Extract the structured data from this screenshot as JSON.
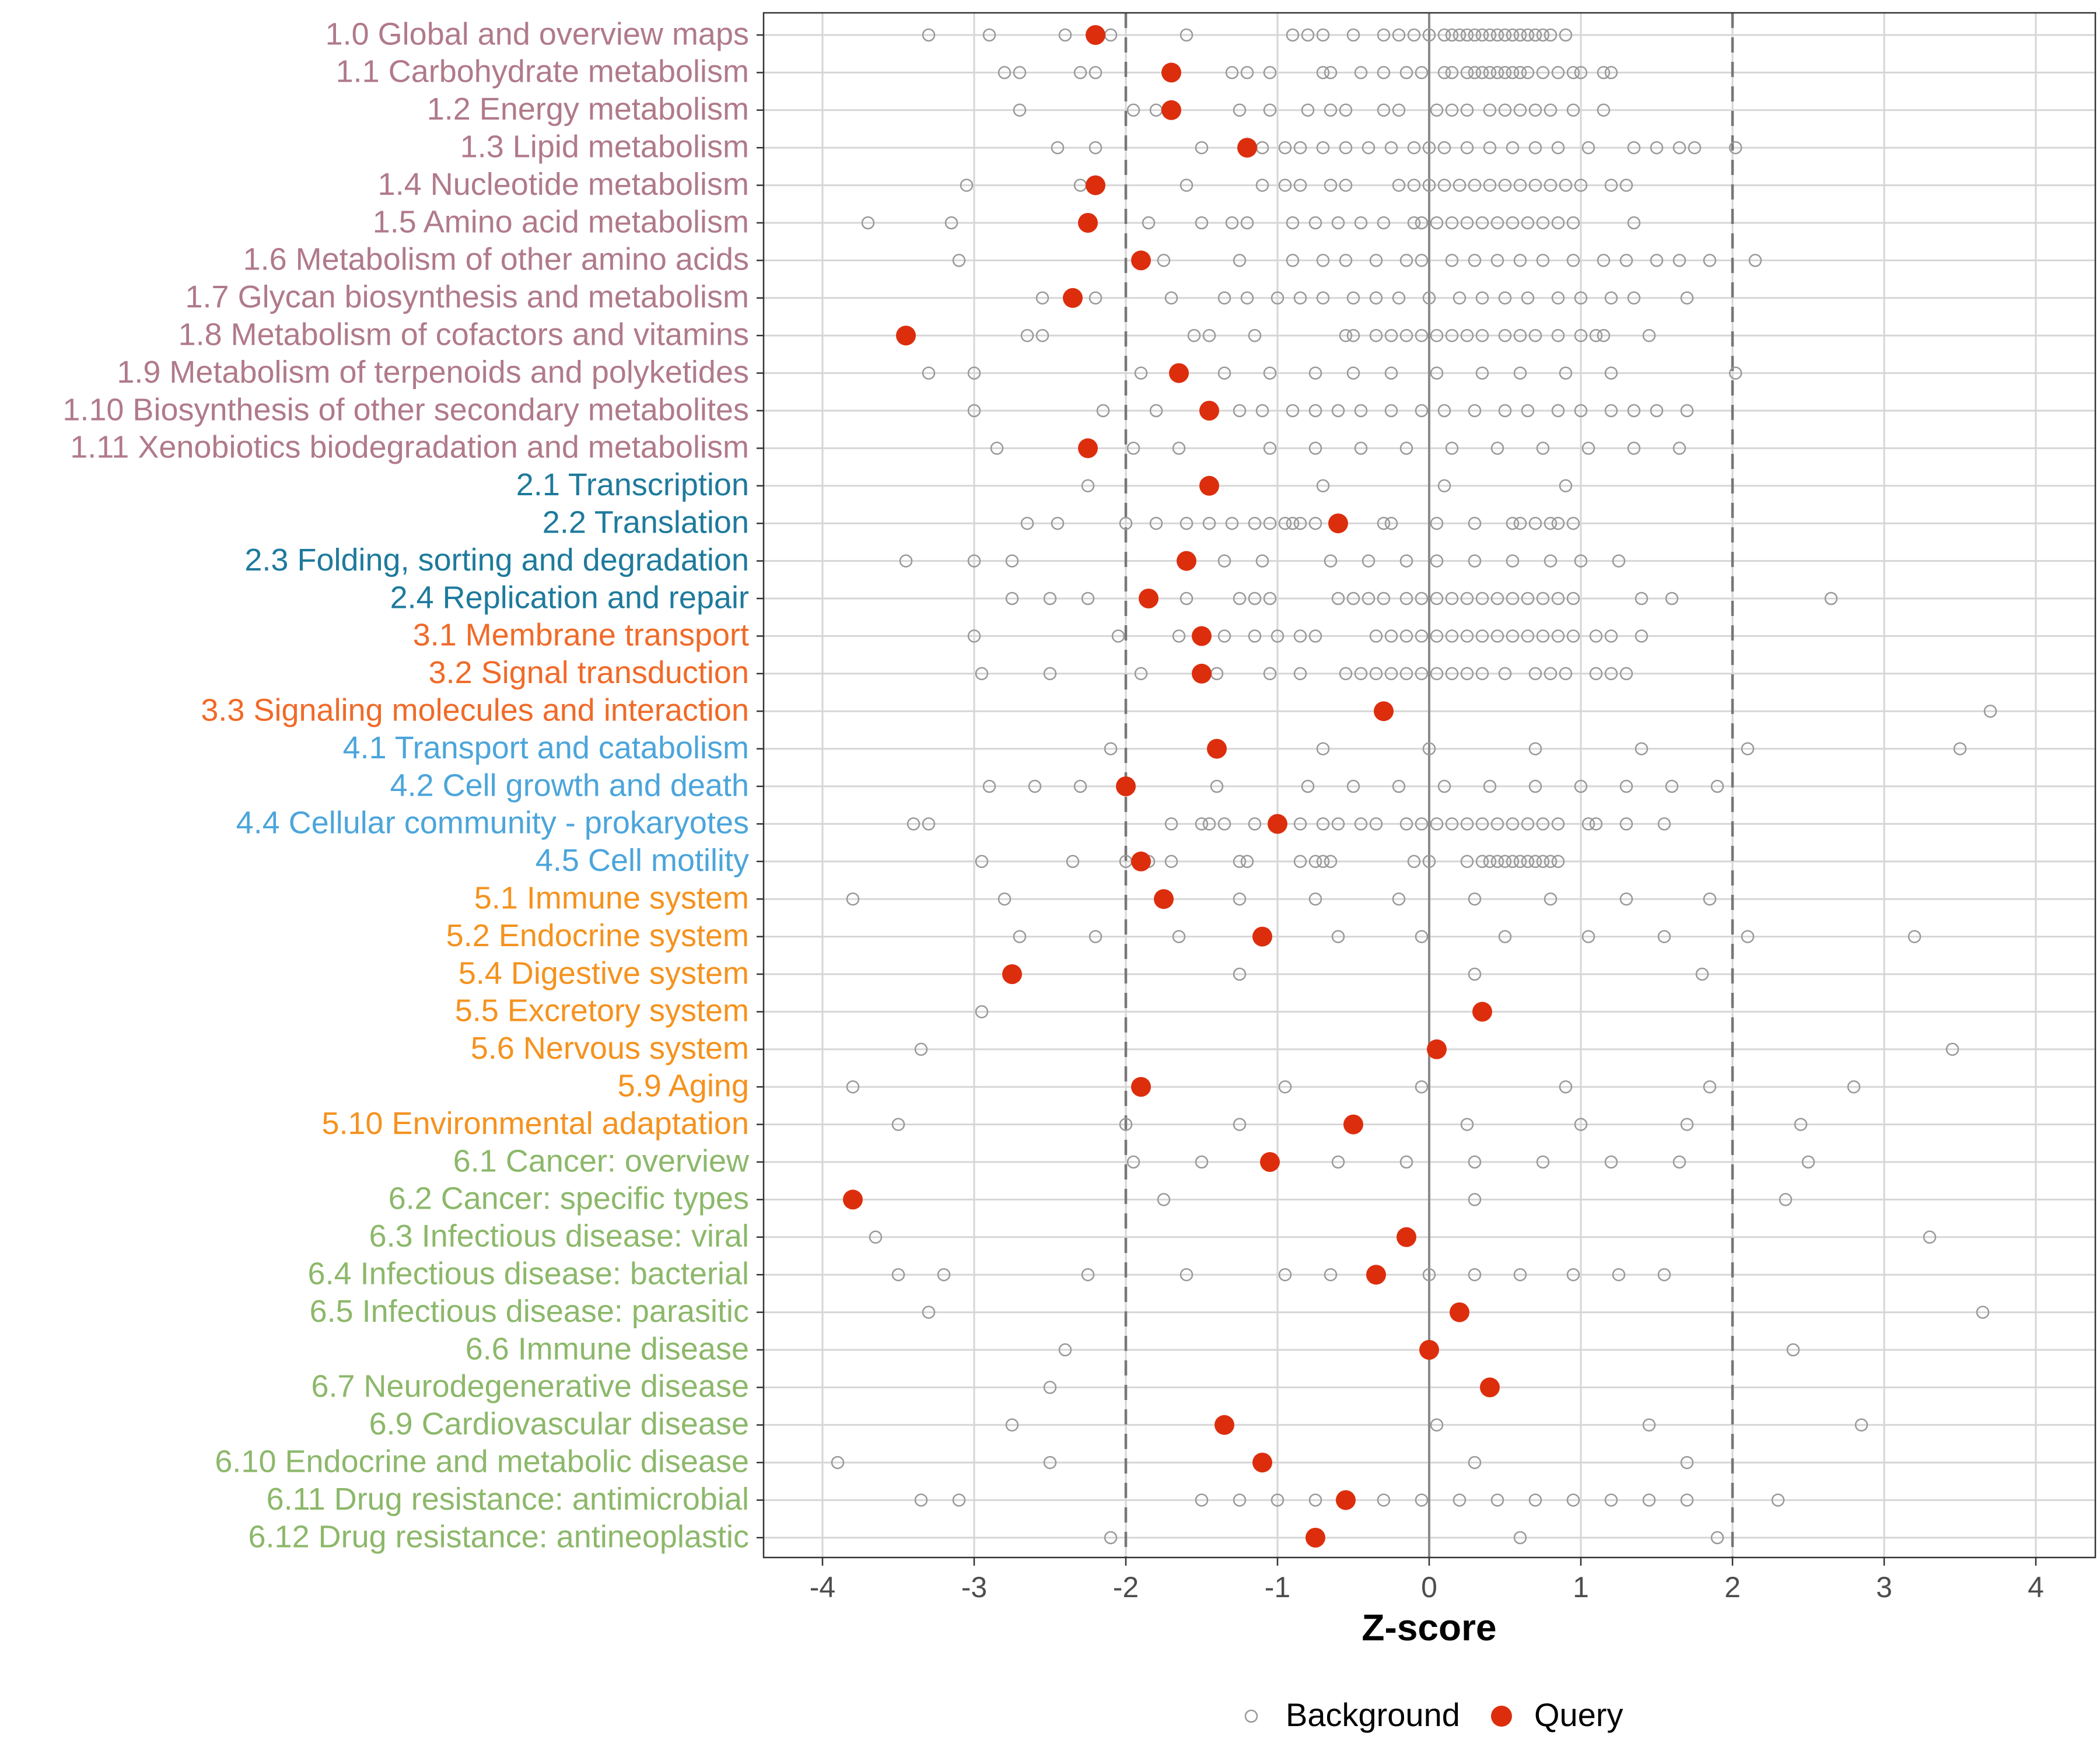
{
  "chart_data": {
    "type": "scatter",
    "title": "",
    "xlabel": "Z-score",
    "ylabel": "",
    "xlim": [
      -4.4,
      4.4
    ],
    "xticks": [
      -4,
      -3,
      -2,
      -1,
      0,
      1,
      2,
      3,
      4
    ],
    "xtick_labels": [
      "-4",
      "-3",
      "-2",
      "-1",
      "0",
      "1",
      "2",
      "3",
      "4"
    ],
    "reference_lines": {
      "dashed": [
        -2,
        2
      ],
      "solid": [
        0
      ]
    },
    "colors": {
      "metabolism": "#b07a8a",
      "genetic": "#1e7a9c",
      "environmental": "#f06a28",
      "cellular": "#4ba5db",
      "organismal": "#f5921e",
      "disease": "#8cb86a",
      "query": "#dc2e0d",
      "background": "#999999"
    },
    "legend": {
      "position": "bottom",
      "entries": [
        "Background",
        "Query"
      ]
    },
    "categories": [
      {
        "label": "1.0 Global and overview maps",
        "group": "metabolism",
        "query": -2.2,
        "background": [
          -3.3,
          -2.9,
          -2.4,
          -2.1,
          -1.6,
          -0.9,
          -0.8,
          -0.7,
          -0.5,
          -0.3,
          -0.2,
          -0.1,
          0.0,
          0.1,
          0.15,
          0.2,
          0.25,
          0.3,
          0.35,
          0.4,
          0.45,
          0.5,
          0.55,
          0.6,
          0.65,
          0.7,
          0.75,
          0.8,
          0.9
        ]
      },
      {
        "label": "1.1 Carbohydrate metabolism",
        "group": "metabolism",
        "query": -1.7,
        "background": [
          -2.8,
          -2.7,
          -2.3,
          -2.2,
          -1.3,
          -1.2,
          -1.05,
          -0.7,
          -0.65,
          -0.45,
          -0.3,
          -0.15,
          -0.05,
          0.1,
          0.15,
          0.25,
          0.3,
          0.35,
          0.4,
          0.45,
          0.5,
          0.55,
          0.6,
          0.65,
          0.75,
          0.85,
          0.95,
          1.0,
          1.15,
          1.2
        ]
      },
      {
        "label": "1.2 Energy metabolism",
        "group": "metabolism",
        "query": -1.7,
        "background": [
          -2.7,
          -1.95,
          -1.8,
          -1.25,
          -1.05,
          -0.8,
          -0.65,
          -0.55,
          -0.3,
          -0.2,
          0.05,
          0.15,
          0.25,
          0.4,
          0.5,
          0.6,
          0.7,
          0.8,
          0.95,
          1.15
        ]
      },
      {
        "label": "1.3 Lipid metabolism",
        "group": "metabolism",
        "query": -1.2,
        "background": [
          -2.45,
          -2.2,
          -1.5,
          -1.1,
          -0.95,
          -0.85,
          -0.7,
          -0.55,
          -0.4,
          -0.25,
          -0.1,
          0.0,
          0.1,
          0.25,
          0.4,
          0.55,
          0.7,
          0.85,
          1.05,
          1.35,
          1.5,
          1.65,
          1.75,
          2.02
        ]
      },
      {
        "label": "1.4 Nucleotide metabolism",
        "group": "metabolism",
        "query": -2.2,
        "background": [
          -3.05,
          -2.3,
          -1.6,
          -1.1,
          -0.95,
          -0.85,
          -0.65,
          -0.55,
          -0.2,
          -0.1,
          0.0,
          0.1,
          0.2,
          0.3,
          0.4,
          0.5,
          0.6,
          0.7,
          0.8,
          0.9,
          1.0,
          1.2,
          1.3
        ]
      },
      {
        "label": "1.5 Amino acid metabolism",
        "group": "metabolism",
        "query": -2.25,
        "background": [
          -3.7,
          -3.15,
          -1.85,
          -1.5,
          -1.3,
          -1.2,
          -0.9,
          -0.75,
          -0.6,
          -0.45,
          -0.3,
          -0.1,
          -0.05,
          0.05,
          0.15,
          0.25,
          0.35,
          0.45,
          0.55,
          0.65,
          0.75,
          0.85,
          0.95,
          1.35
        ]
      },
      {
        "label": "1.6 Metabolism of other amino acids",
        "group": "metabolism",
        "query": -1.9,
        "background": [
          -3.1,
          -1.75,
          -1.25,
          -0.9,
          -0.7,
          -0.55,
          -0.35,
          -0.15,
          -0.05,
          0.15,
          0.3,
          0.45,
          0.6,
          0.75,
          0.95,
          1.15,
          1.3,
          1.5,
          1.65,
          1.85,
          2.15
        ]
      },
      {
        "label": "1.7 Glycan biosynthesis and metabolism",
        "group": "metabolism",
        "query": -2.35,
        "background": [
          -2.55,
          -2.2,
          -1.7,
          -1.35,
          -1.2,
          -1.0,
          -0.85,
          -0.7,
          -0.5,
          -0.35,
          -0.2,
          0.0,
          0.2,
          0.35,
          0.5,
          0.65,
          0.85,
          1.0,
          1.2,
          1.35,
          1.7
        ]
      },
      {
        "label": "1.8 Metabolism of cofactors and vitamins",
        "group": "metabolism",
        "query": -3.45,
        "background": [
          -2.65,
          -2.55,
          -1.55,
          -1.45,
          -1.15,
          -0.55,
          -0.5,
          -0.35,
          -0.25,
          -0.15,
          -0.05,
          0.05,
          0.15,
          0.25,
          0.35,
          0.5,
          0.6,
          0.7,
          0.85,
          1.0,
          1.1,
          1.15,
          1.45
        ]
      },
      {
        "label": "1.9 Metabolism of terpenoids and polyketides",
        "group": "metabolism",
        "query": -1.65,
        "background": [
          -3.3,
          -3.0,
          -1.9,
          -1.35,
          -1.05,
          -0.75,
          -0.5,
          -0.25,
          0.05,
          0.35,
          0.6,
          0.9,
          1.2,
          2.02
        ]
      },
      {
        "label": "1.10 Biosynthesis of other secondary metabolites",
        "group": "metabolism",
        "query": -1.45,
        "background": [
          -3.0,
          -2.15,
          -1.8,
          -1.25,
          -1.1,
          -0.9,
          -0.75,
          -0.6,
          -0.45,
          -0.25,
          -0.05,
          0.1,
          0.3,
          0.5,
          0.65,
          0.85,
          1.0,
          1.2,
          1.35,
          1.5,
          1.7
        ]
      },
      {
        "label": "1.11 Xenobiotics biodegradation and metabolism",
        "group": "metabolism",
        "query": -2.25,
        "background": [
          -2.85,
          -1.95,
          -1.65,
          -1.05,
          -0.75,
          -0.45,
          -0.15,
          0.15,
          0.45,
          0.75,
          1.05,
          1.35,
          1.65
        ]
      },
      {
        "label": "2.1 Transcription",
        "group": "genetic",
        "query": -1.45,
        "background": [
          -2.25,
          -0.7,
          0.1,
          0.9
        ]
      },
      {
        "label": "2.2 Translation",
        "group": "genetic",
        "query": -0.6,
        "background": [
          -2.65,
          -2.45,
          -2.0,
          -1.8,
          -1.6,
          -1.45,
          -1.3,
          -1.15,
          -1.05,
          -0.95,
          -0.9,
          -0.85,
          -0.75,
          -0.3,
          -0.25,
          0.05,
          0.3,
          0.55,
          0.6,
          0.7,
          0.8,
          0.85,
          0.95
        ]
      },
      {
        "label": "2.3 Folding, sorting and degradation",
        "group": "genetic",
        "query": -1.6,
        "background": [
          -3.45,
          -3.0,
          -2.75,
          -1.35,
          -1.1,
          -0.65,
          -0.4,
          -0.15,
          0.05,
          0.3,
          0.55,
          0.8,
          1.0,
          1.25
        ]
      },
      {
        "label": "2.4 Replication and repair",
        "group": "genetic",
        "query": -1.85,
        "background": [
          -2.75,
          -2.5,
          -2.25,
          -1.6,
          -1.25,
          -1.15,
          -1.05,
          -0.6,
          -0.5,
          -0.4,
          -0.3,
          -0.15,
          -0.05,
          0.05,
          0.15,
          0.25,
          0.35,
          0.45,
          0.55,
          0.65,
          0.75,
          0.85,
          0.95,
          1.4,
          1.6,
          2.65
        ]
      },
      {
        "label": "3.1 Membrane transport",
        "group": "environmental",
        "query": -1.5,
        "background": [
          -3.0,
          -2.05,
          -1.65,
          -1.35,
          -1.15,
          -1.0,
          -0.85,
          -0.75,
          -0.35,
          -0.25,
          -0.15,
          -0.05,
          0.05,
          0.15,
          0.25,
          0.35,
          0.45,
          0.55,
          0.65,
          0.75,
          0.85,
          0.95,
          1.1,
          1.2,
          1.4
        ]
      },
      {
        "label": "3.2 Signal transduction",
        "group": "environmental",
        "query": -1.5,
        "background": [
          -2.95,
          -2.5,
          -1.9,
          -1.4,
          -1.05,
          -0.85,
          -0.55,
          -0.45,
          -0.35,
          -0.25,
          -0.15,
          -0.05,
          0.05,
          0.15,
          0.25,
          0.35,
          0.5,
          0.7,
          0.8,
          0.9,
          1.1,
          1.2,
          1.3
        ]
      },
      {
        "label": "3.3 Signaling molecules and interaction",
        "group": "environmental",
        "query": -0.3,
        "background": [
          3.7
        ]
      },
      {
        "label": "4.1 Transport and catabolism",
        "group": "cellular",
        "query": -1.4,
        "background": [
          -2.1,
          -0.7,
          0.0,
          0.7,
          1.4,
          2.1,
          3.5
        ]
      },
      {
        "label": "4.2 Cell growth and death",
        "group": "cellular",
        "query": -2.0,
        "background": [
          -2.9,
          -2.6,
          -2.3,
          -1.4,
          -0.8,
          -0.5,
          -0.2,
          0.1,
          0.4,
          0.7,
          1.0,
          1.3,
          1.6,
          1.9
        ]
      },
      {
        "label": "4.4 Cellular community - prokaryotes",
        "group": "cellular",
        "query": -1.0,
        "background": [
          -3.4,
          -3.3,
          -1.7,
          -1.5,
          -1.45,
          -1.35,
          -1.15,
          -0.85,
          -0.7,
          -0.6,
          -0.45,
          -0.35,
          -0.15,
          -0.05,
          0.05,
          0.15,
          0.25,
          0.35,
          0.45,
          0.55,
          0.65,
          0.75,
          0.85,
          1.05,
          1.1,
          1.3,
          1.55
        ]
      },
      {
        "label": "4.5 Cell motility",
        "group": "cellular",
        "query": -1.9,
        "background": [
          -2.95,
          -2.35,
          -2.0,
          -1.85,
          -1.7,
          -1.25,
          -1.2,
          -0.85,
          -0.75,
          -0.7,
          -0.65,
          -0.1,
          0.0,
          0.25,
          0.35,
          0.4,
          0.45,
          0.5,
          0.55,
          0.6,
          0.65,
          0.7,
          0.75,
          0.8,
          0.85
        ]
      },
      {
        "label": "5.1 Immune system",
        "group": "organismal",
        "query": -1.75,
        "background": [
          -3.8,
          -2.8,
          -1.25,
          -0.75,
          -0.2,
          0.3,
          0.8,
          1.3,
          1.85
        ]
      },
      {
        "label": "5.2 Endocrine system",
        "group": "organismal",
        "query": -1.1,
        "background": [
          -2.7,
          -2.2,
          -1.65,
          -0.6,
          -0.05,
          0.5,
          1.05,
          1.55,
          2.1,
          3.2
        ]
      },
      {
        "label": "5.4 Digestive system",
        "group": "organismal",
        "query": -2.75,
        "background": [
          -1.25,
          0.3,
          1.8
        ]
      },
      {
        "label": "5.5 Excretory system",
        "group": "organismal",
        "query": 0.35,
        "background": [
          -2.95
        ]
      },
      {
        "label": "5.6 Nervous system",
        "group": "organismal",
        "query": 0.05,
        "background": [
          -3.35,
          3.45
        ]
      },
      {
        "label": "5.9 Aging",
        "group": "organismal",
        "query": -1.9,
        "background": [
          -3.8,
          -0.95,
          -0.05,
          0.9,
          1.85,
          2.8
        ]
      },
      {
        "label": "5.10 Environmental adaptation",
        "group": "organismal",
        "query": -0.5,
        "background": [
          -3.5,
          -2.0,
          -1.25,
          0.25,
          1.0,
          1.7,
          2.45
        ]
      },
      {
        "label": "6.1 Cancer: overview",
        "group": "disease",
        "query": -1.05,
        "background": [
          -1.95,
          -1.5,
          -0.6,
          -0.15,
          0.3,
          0.75,
          1.2,
          1.65,
          2.5
        ]
      },
      {
        "label": "6.2 Cancer: specific types",
        "group": "disease",
        "query": -3.8,
        "background": [
          -1.75,
          0.3,
          2.35
        ]
      },
      {
        "label": "6.3 Infectious disease: viral",
        "group": "disease",
        "query": -0.15,
        "background": [
          -3.65,
          3.3
        ]
      },
      {
        "label": "6.4 Infectious disease: bacterial",
        "group": "disease",
        "query": -0.35,
        "background": [
          -3.5,
          -3.2,
          -2.25,
          -1.6,
          -0.95,
          -0.65,
          0.0,
          0.3,
          0.6,
          0.95,
          1.25,
          1.55
        ]
      },
      {
        "label": "6.5 Infectious disease: parasitic",
        "group": "disease",
        "query": 0.2,
        "background": [
          -3.3,
          3.65
        ]
      },
      {
        "label": "6.6 Immune disease",
        "group": "disease",
        "query": 0.0,
        "background": [
          -2.4,
          2.4
        ]
      },
      {
        "label": "6.7 Neurodegenerative disease",
        "group": "disease",
        "query": 0.4,
        "background": [
          -2.5
        ]
      },
      {
        "label": "6.9 Cardiovascular disease",
        "group": "disease",
        "query": -1.35,
        "background": [
          -2.75,
          0.05,
          1.45,
          2.85
        ]
      },
      {
        "label": "6.10 Endocrine and metabolic disease",
        "group": "disease",
        "query": -1.1,
        "background": [
          -3.9,
          -2.5,
          0.3,
          1.7
        ]
      },
      {
        "label": "6.11 Drug resistance: antimicrobial",
        "group": "disease",
        "query": -0.55,
        "background": [
          -3.35,
          -3.1,
          -1.5,
          -1.25,
          -1.0,
          -0.75,
          -0.3,
          -0.05,
          0.2,
          0.45,
          0.7,
          0.95,
          1.2,
          1.45,
          1.7,
          2.3
        ]
      },
      {
        "label": "6.12 Drug resistance: antineoplastic",
        "group": "disease",
        "query": -0.75,
        "background": [
          -2.1,
          0.6,
          1.9
        ]
      }
    ]
  }
}
